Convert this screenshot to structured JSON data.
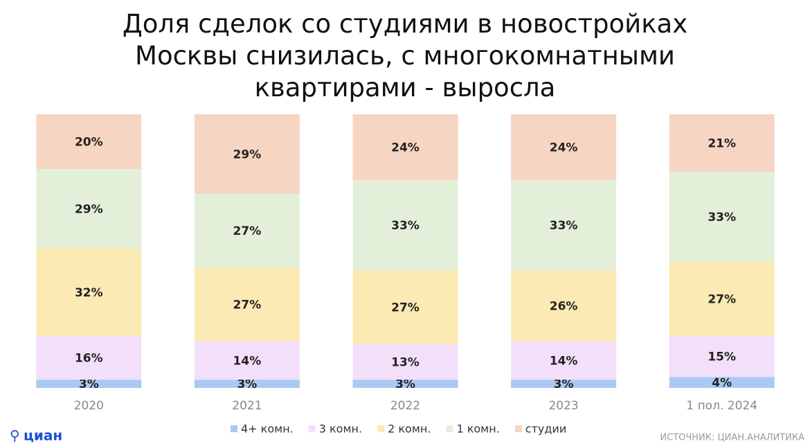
{
  "chart_data": {
    "type": "stacked_bar",
    "title": "Доля сделок со студиями в новостройках\nМосквы снизилась, с многокомнатными\nквартирами - выросла",
    "categories": [
      "2020",
      "2021",
      "2022",
      "2023",
      "1 пол. 2024"
    ],
    "series": [
      {
        "name": "4+ комн.",
        "color": "#a9c9f2",
        "values": [
          3,
          3,
          3,
          3,
          4
        ],
        "value_labels": [
          "3%",
          "3%",
          "3%",
          "3%",
          "4%"
        ]
      },
      {
        "name": "3 комн.",
        "color": "#f3dffa",
        "values": [
          16,
          14,
          13,
          14,
          15
        ],
        "value_labels": [
          "16%",
          "14%",
          "13%",
          "14%",
          "15%"
        ]
      },
      {
        "name": "2 комн.",
        "color": "#fbeab3",
        "values": [
          32,
          27,
          27,
          26,
          27
        ],
        "value_labels": [
          "32%",
          "27%",
          "27%",
          "26%",
          "27%"
        ]
      },
      {
        "name": "1 комн.",
        "color": "#e3efd9",
        "values": [
          29,
          27,
          33,
          33,
          33
        ],
        "value_labels": [
          "29%",
          "27%",
          "33%",
          "33%",
          "33%"
        ]
      },
      {
        "name": "студии",
        "color": "#f6d5c3",
        "values": [
          20,
          29,
          24,
          24,
          21
        ],
        "value_labels": [
          "20%",
          "29%",
          "24%",
          "24%",
          "21%"
        ]
      }
    ],
    "ylim": [
      0,
      100
    ],
    "logo": "циан",
    "source": "ИСТОЧНИК: ЦИАН.АНАЛИТИКА"
  }
}
